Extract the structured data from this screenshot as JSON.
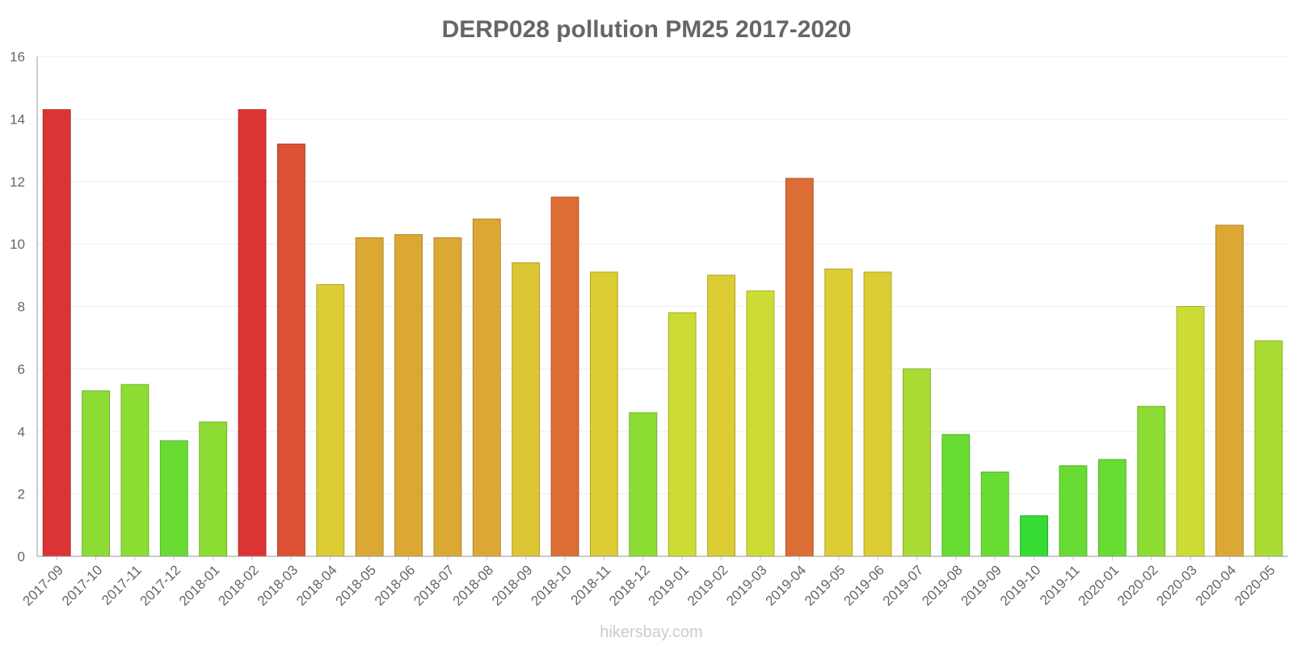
{
  "chart_data": {
    "type": "bar",
    "title": "DERP028 pollution PM25 2017-2020",
    "xlabel": "",
    "ylabel": "",
    "ylim": [
      0,
      16
    ],
    "yticks": [
      "0",
      "2",
      "4",
      "6",
      "8",
      "10",
      "12",
      "14",
      "16"
    ],
    "grid": true,
    "categories": [
      "2017-09",
      "2017-10",
      "2017-11",
      "2017-12",
      "2018-01",
      "2018-02",
      "2018-03",
      "2018-04",
      "2018-05",
      "2018-06",
      "2018-07",
      "2018-08",
      "2018-09",
      "2018-10",
      "2018-11",
      "2018-12",
      "2019-01",
      "2019-02",
      "2019-03",
      "2019-04",
      "2019-05",
      "2019-06",
      "2019-07",
      "2019-08",
      "2019-09",
      "2019-10",
      "2019-11",
      "2020-01",
      "2020-02",
      "2020-03",
      "2020-04",
      "2020-05"
    ],
    "values": [
      14.3,
      5.3,
      5.5,
      3.7,
      4.3,
      14.3,
      13.2,
      8.7,
      10.2,
      10.3,
      10.2,
      10.8,
      9.4,
      11.5,
      9.1,
      4.6,
      7.8,
      9.0,
      8.5,
      12.1,
      9.2,
      9.1,
      6.0,
      3.9,
      2.7,
      1.3,
      2.9,
      3.1,
      4.8,
      8.0,
      10.6,
      6.9
    ],
    "colors": [
      "#dc3434",
      "#8ddc34",
      "#8ddc34",
      "#69dc34",
      "#8ddc34",
      "#dc3434",
      "#dc5034",
      "#dccd34",
      "#dca834",
      "#dca834",
      "#dca834",
      "#dca834",
      "#dcc634",
      "#dc6d34",
      "#dccd34",
      "#8ddc34",
      "#ccdc34",
      "#dccd34",
      "#ccdc34",
      "#dc6d34",
      "#dccd34",
      "#dccd34",
      "#aadc34",
      "#69dc34",
      "#69dc34",
      "#34dc34",
      "#69dc34",
      "#69dc34",
      "#8ddc34",
      "#ccdc34",
      "#dca834",
      "#aadc34"
    ]
  },
  "watermark": "hikersbay.com"
}
